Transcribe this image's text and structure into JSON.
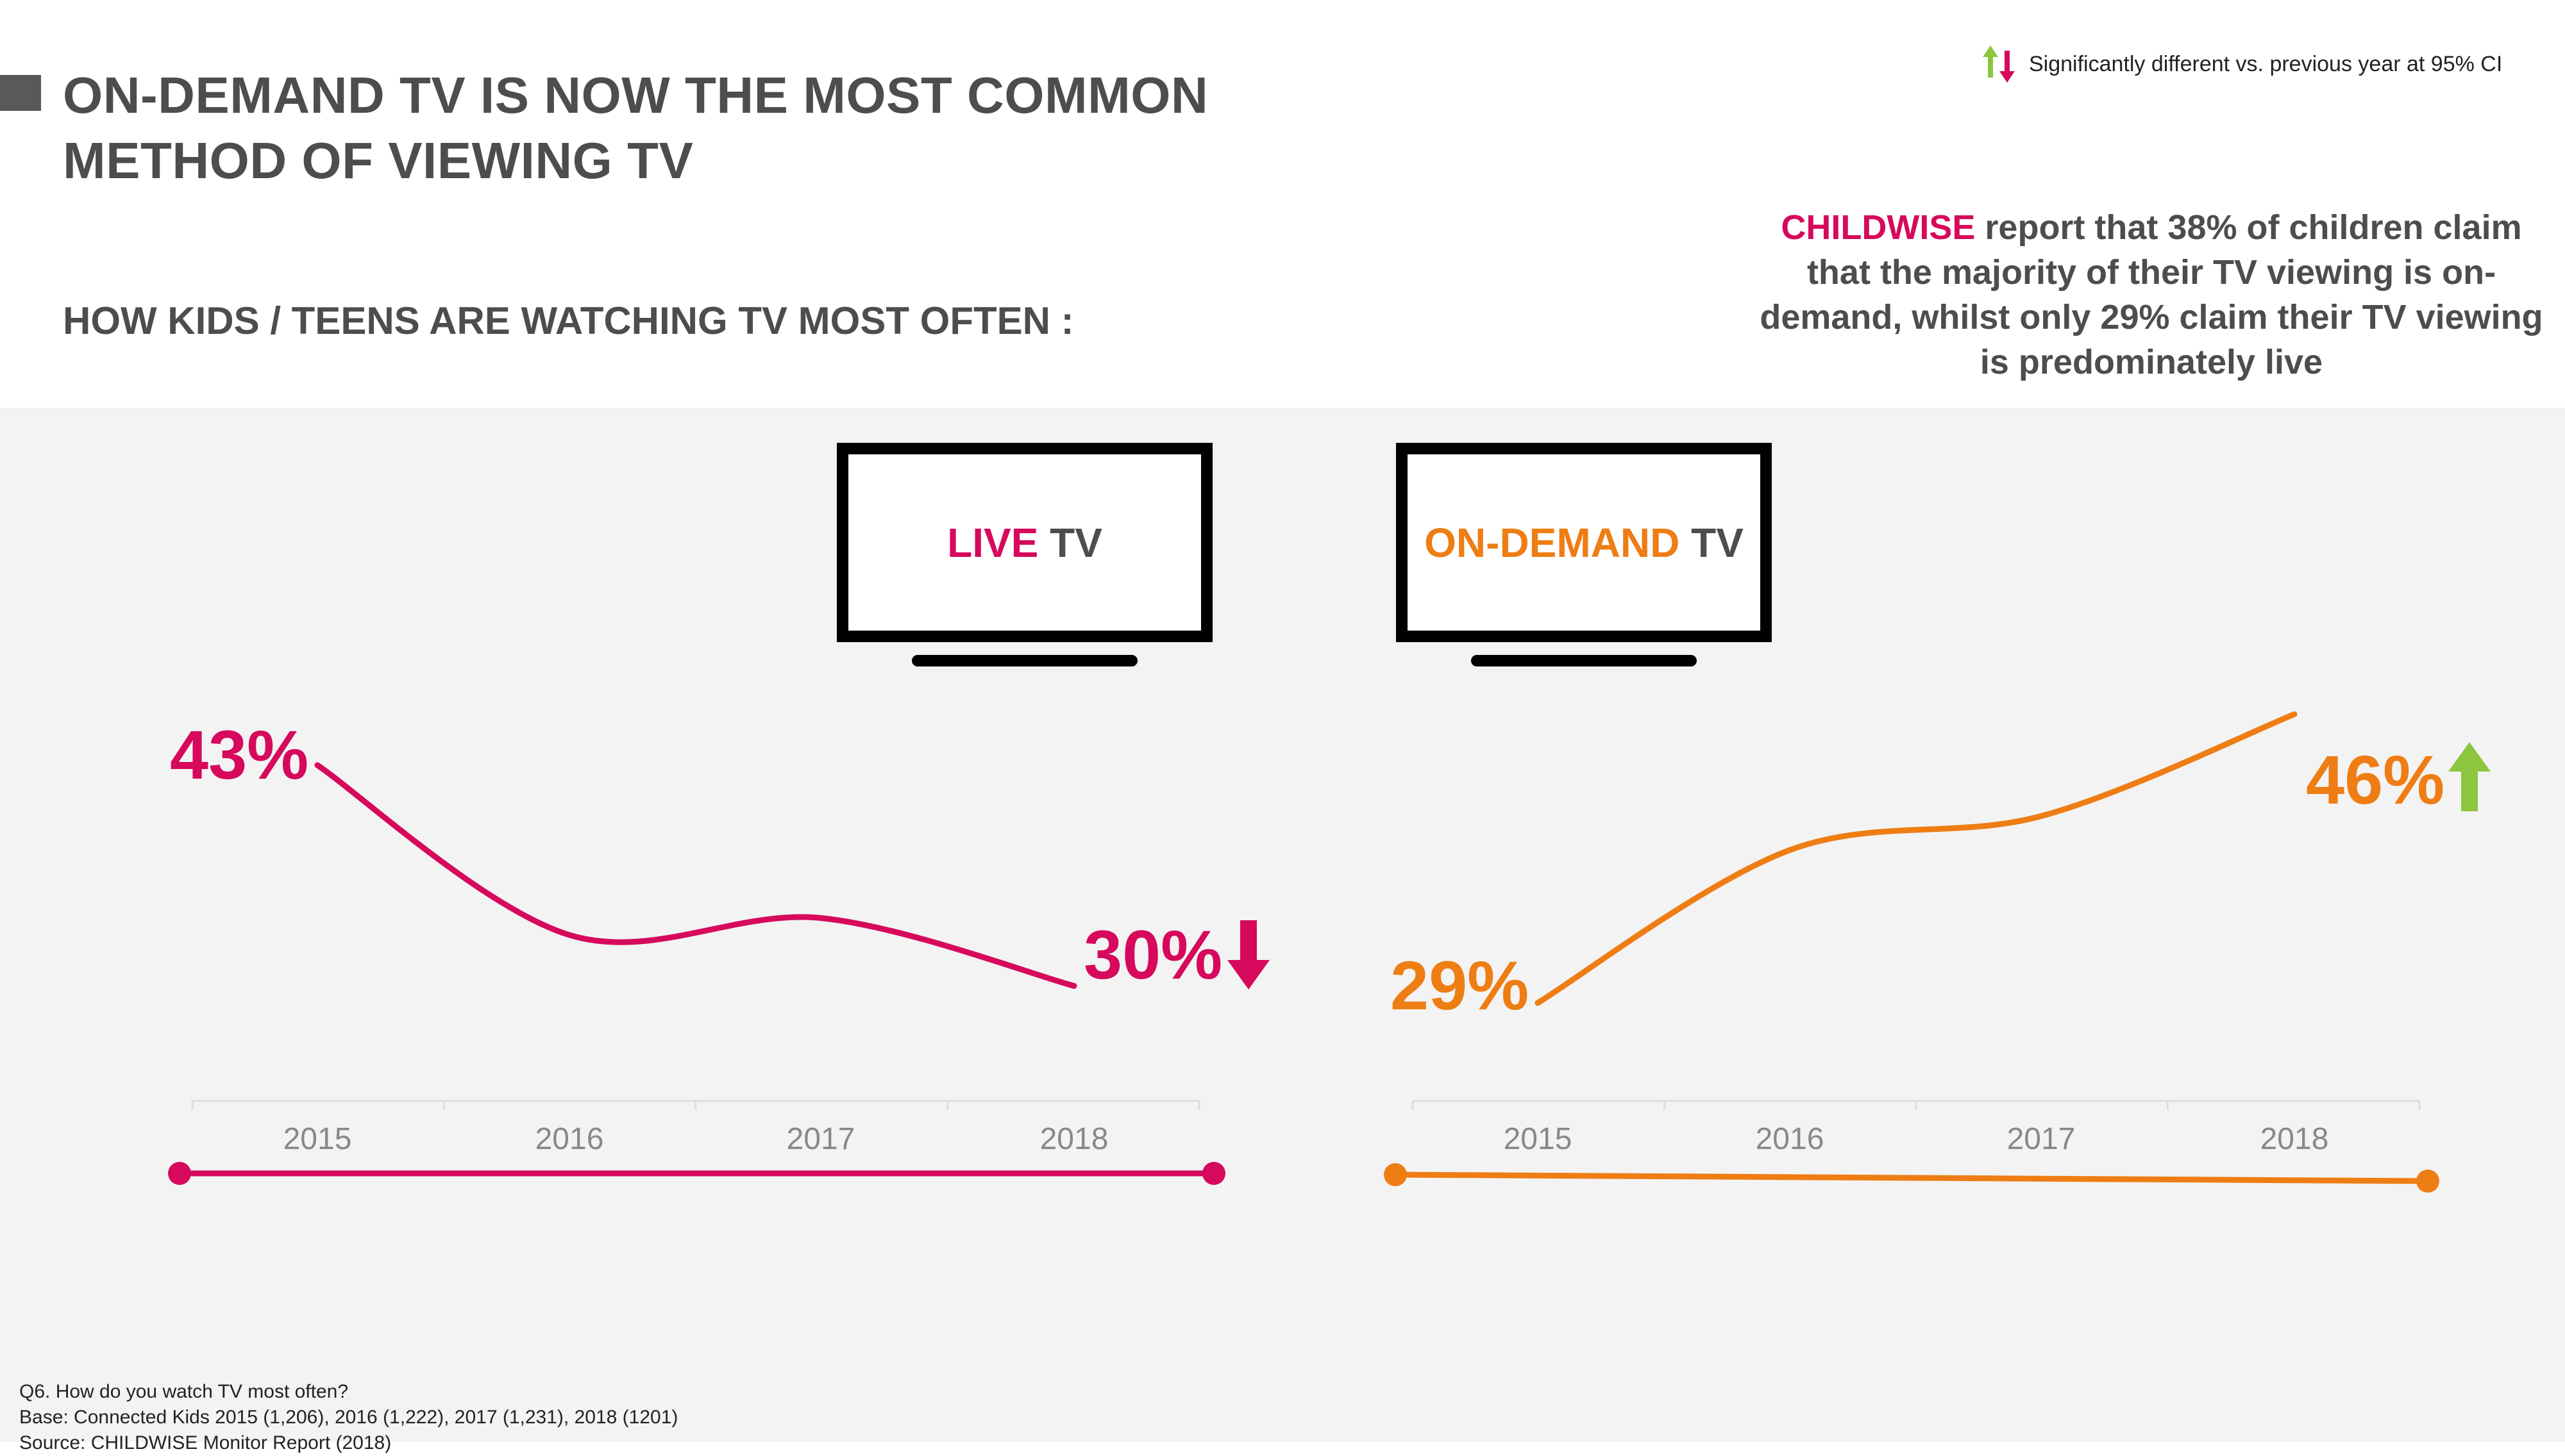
{
  "title_line1": "ON-DEMAND TV IS NOW THE MOST COMMON",
  "title_line2": "METHOD OF VIEWING TV",
  "subtitle": "HOW KIDS / TEENS ARE WATCHING TV MOST OFTEN :",
  "legend": {
    "text": "Significantly different vs. previous year at 95% CI",
    "up_color": "#8cc63f",
    "down_color": "#d6095c"
  },
  "callout": {
    "brand": "CHILDWISE",
    "text": " report that 38% of children claim that the majority of their TV viewing is on-demand, whilst only 29% claim their TV viewing is predominately live"
  },
  "tvs": {
    "live": {
      "accent": "LIVE",
      "rest": " TV"
    },
    "ondemand": {
      "accent": "ON-DEMAND",
      "rest": " TV"
    }
  },
  "colors": {
    "live": "#d6095c",
    "ondemand": "#ee7d14",
    "axis": "#dddddd",
    "tick_text": "#888888"
  },
  "chart_data": [
    {
      "type": "line",
      "name": "LIVE TV",
      "categories": [
        "2015",
        "2016",
        "2017",
        "2018"
      ],
      "values": [
        43,
        33,
        34,
        30
      ],
      "start_label": "43%",
      "end_label": "30%",
      "significance": "down"
    },
    {
      "type": "line",
      "name": "ON-DEMAND TV",
      "categories": [
        "2015",
        "2016",
        "2017",
        "2018"
      ],
      "values": [
        29,
        38,
        40,
        46
      ],
      "start_label": "29%",
      "end_label": "46%",
      "significance": "up"
    }
  ],
  "footer": {
    "line1": "Q6. How do you watch TV most often?",
    "line2": "Base: Connected Kids 2015 (1,206), 2016 (1,222), 2017 (1,231), 2018 (1201)",
    "line3": "Source: CHILDWISE Monitor Report (2018)"
  }
}
